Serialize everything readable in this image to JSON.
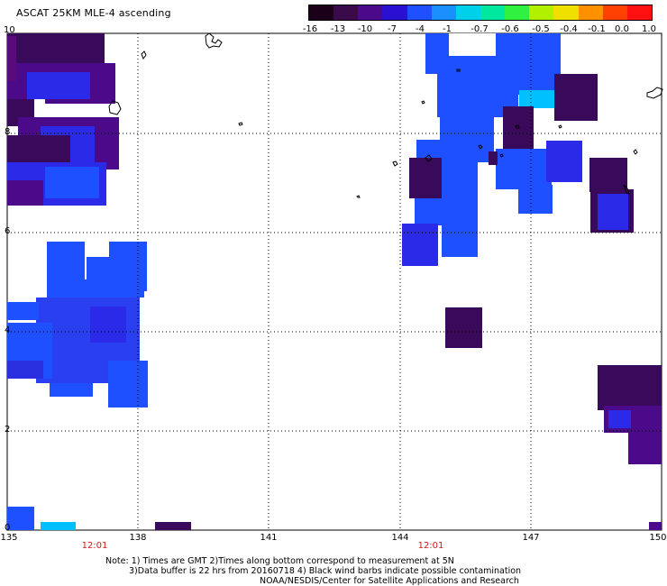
{
  "title": "ASCAT 25KM MLE-4 ascending",
  "colorbar": {
    "labels": [
      "-16",
      "-13",
      "-10",
      "-7",
      "-4",
      "-1",
      "-0.7",
      "-0.6",
      "-0.5",
      "-0.4",
      "-0.1",
      "0.0",
      "1.0"
    ],
    "colors": [
      "#1a0018",
      "#3a0a4a",
      "#4a0a8a",
      "#2a10d0",
      "#1e50ff",
      "#1a90ff",
      "#00d0e8",
      "#00e8a0",
      "#30f040",
      "#b0f000",
      "#f0e000",
      "#ff9000",
      "#ff4000",
      "#ff1010"
    ]
  },
  "axes": {
    "y_ticks": [
      "0",
      "2",
      "4",
      "6",
      "8",
      "10"
    ],
    "x_ticks": [
      "135",
      "138",
      "141",
      "144",
      "147",
      "150"
    ],
    "time_labels": [
      "12:01",
      "12:01"
    ]
  },
  "notes": {
    "line1": "Note: 1) Times are GMT 2)Times along bottom correspond to measurement at 5N",
    "line2": "3)Data buffer is 22 hrs from 20160718 4) Black wind barbs indicate possible contamination",
    "line3": "NOAA/NESDIS/Center for Satellite Applications and Research"
  },
  "legend_colors": {
    "dark_purple": "#3a0a5a",
    "purple": "#4a0a8a",
    "blue": "#2a2ae8",
    "mid_blue": "#1e50ff",
    "cyan": "#00c0ff"
  }
}
